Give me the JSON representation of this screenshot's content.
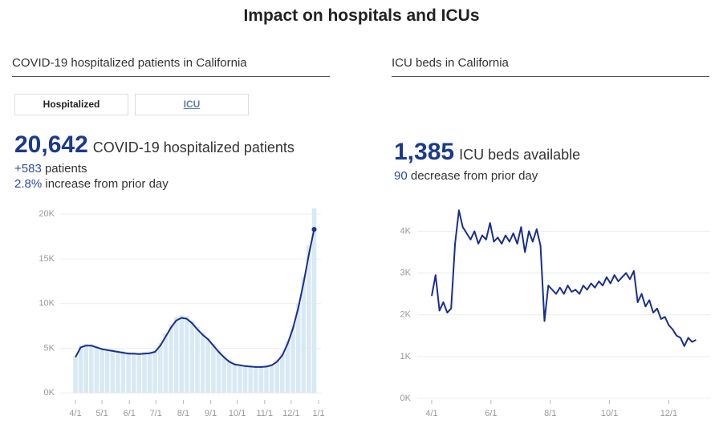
{
  "title": "Impact on hospitals and ICUs",
  "left": {
    "heading": "COVID-19 hospitalized patients in California",
    "tabs": [
      "Hospitalized",
      "ICU"
    ],
    "stat": "20,642",
    "stat_label": "COVID-19 hospitalized patients",
    "change": "+583",
    "change_label": "patients",
    "pct": "2.8%",
    "pct_label": "increase from prior day"
  },
  "right": {
    "heading": "ICU beds in California",
    "stat": "1,385",
    "stat_label": "ICU beds available",
    "change": "90",
    "change_label": "decrease from prior day"
  },
  "chart_data": [
    {
      "type": "line",
      "x": [
        0,
        6,
        12,
        18,
        24,
        30,
        36,
        42,
        48,
        54,
        60,
        66,
        72,
        78,
        84,
        90,
        96,
        102,
        108,
        114,
        120,
        126,
        132,
        138,
        144,
        150,
        156,
        162,
        168,
        174,
        180,
        186,
        192,
        198,
        204,
        210,
        216,
        222,
        228,
        234,
        240,
        246,
        252,
        258,
        264,
        270
      ],
      "series": [
        {
          "type": "bar",
          "color": "#d9e9f4",
          "values": [
            4100,
            5300,
            5500,
            5450,
            5300,
            5050,
            5000,
            4900,
            4750,
            4700,
            4600,
            4550,
            4500,
            4600,
            4650,
            4800,
            5600,
            6700,
            7700,
            8500,
            8700,
            8600,
            8100,
            7400,
            6800,
            6200,
            5500,
            4800,
            4200,
            3700,
            3350,
            3250,
            3150,
            3100,
            3050,
            3050,
            3100,
            3250,
            3700,
            4400,
            5800,
            7600,
            10000,
            13000,
            16500,
            20642
          ]
        },
        {
          "type": "line",
          "color": "#1a2f8a",
          "values": [
            4000,
            5100,
            5300,
            5300,
            5100,
            4900,
            4800,
            4700,
            4600,
            4500,
            4400,
            4400,
            4350,
            4400,
            4450,
            4600,
            5300,
            6300,
            7300,
            8100,
            8400,
            8300,
            7800,
            7100,
            6500,
            6000,
            5300,
            4600,
            4000,
            3500,
            3200,
            3100,
            3000,
            2950,
            2900,
            2900,
            2950,
            3100,
            3500,
            4200,
            5500,
            7200,
            9500,
            12300,
            15500,
            18300
          ]
        }
      ],
      "xlim": [
        0,
        275
      ],
      "xticks": [
        {
          "value": 0,
          "label": "4/1"
        },
        {
          "value": 30,
          "label": "5/1"
        },
        {
          "value": 61,
          "label": "6/1"
        },
        {
          "value": 91,
          "label": "7/1"
        },
        {
          "value": 122,
          "label": "8/1"
        },
        {
          "value": 153,
          "label": "9/1"
        },
        {
          "value": 183,
          "label": "10/1"
        },
        {
          "value": 214,
          "label": "11/1"
        },
        {
          "value": 244,
          "label": "12/1"
        },
        {
          "value": 275,
          "label": "1/1"
        }
      ],
      "ylim": [
        -600,
        21000
      ],
      "yticks": [
        {
          "value": 0,
          "label": "0K"
        },
        {
          "value": 5000,
          "label": "5K"
        },
        {
          "value": 10000,
          "label": "10K"
        },
        {
          "value": 15000,
          "label": "15K"
        },
        {
          "value": 20000,
          "label": "20K"
        }
      ],
      "grid": true
    },
    {
      "type": "line",
      "x": [
        0,
        4,
        8,
        12,
        16,
        20,
        24,
        28,
        32,
        36,
        40,
        44,
        48,
        52,
        56,
        60,
        64,
        68,
        72,
        76,
        80,
        84,
        88,
        92,
        96,
        100,
        104,
        108,
        112,
        116,
        120,
        124,
        128,
        132,
        136,
        140,
        144,
        148,
        152,
        156,
        160,
        164,
        168,
        172,
        176,
        180,
        184,
        188,
        192,
        196,
        200,
        204,
        208,
        212,
        216,
        220,
        224,
        228,
        232,
        236,
        240,
        244,
        248,
        252,
        256,
        260,
        264,
        268,
        272
      ],
      "series": [
        {
          "type": "line",
          "color": "#1a2f8a",
          "values": [
            2450,
            2950,
            2100,
            2300,
            2050,
            2150,
            3700,
            4500,
            4100,
            3950,
            3800,
            4000,
            3700,
            3900,
            3800,
            4200,
            3750,
            3850,
            3700,
            3900,
            3750,
            3950,
            3700,
            4100,
            3500,
            4000,
            3750,
            4050,
            3650,
            1850,
            2700,
            2600,
            2500,
            2650,
            2500,
            2700,
            2550,
            2600,
            2500,
            2700,
            2600,
            2750,
            2650,
            2800,
            2700,
            2900,
            2750,
            2950,
            2800,
            2900,
            3000,
            2850,
            3050,
            2300,
            2500,
            2200,
            2350,
            2050,
            2150,
            1900,
            1950,
            1750,
            1650,
            1500,
            1450,
            1250,
            1450,
            1350,
            1400
          ]
        }
      ],
      "xlim": [
        0,
        275
      ],
      "xticks": [
        {
          "value": 0,
          "label": "4/1"
        },
        {
          "value": 61,
          "label": "6/1"
        },
        {
          "value": 122,
          "label": "8/1"
        },
        {
          "value": 183,
          "label": "10/1"
        },
        {
          "value": 244,
          "label": "12/1"
        }
      ],
      "ylim": [
        0,
        4700
      ],
      "yticks": [
        {
          "value": 0,
          "label": "0K"
        },
        {
          "value": 1000,
          "label": "1K"
        },
        {
          "value": 2000,
          "label": "2K"
        },
        {
          "value": 3000,
          "label": "3K"
        },
        {
          "value": 4000,
          "label": "4K"
        }
      ],
      "grid": true
    }
  ]
}
